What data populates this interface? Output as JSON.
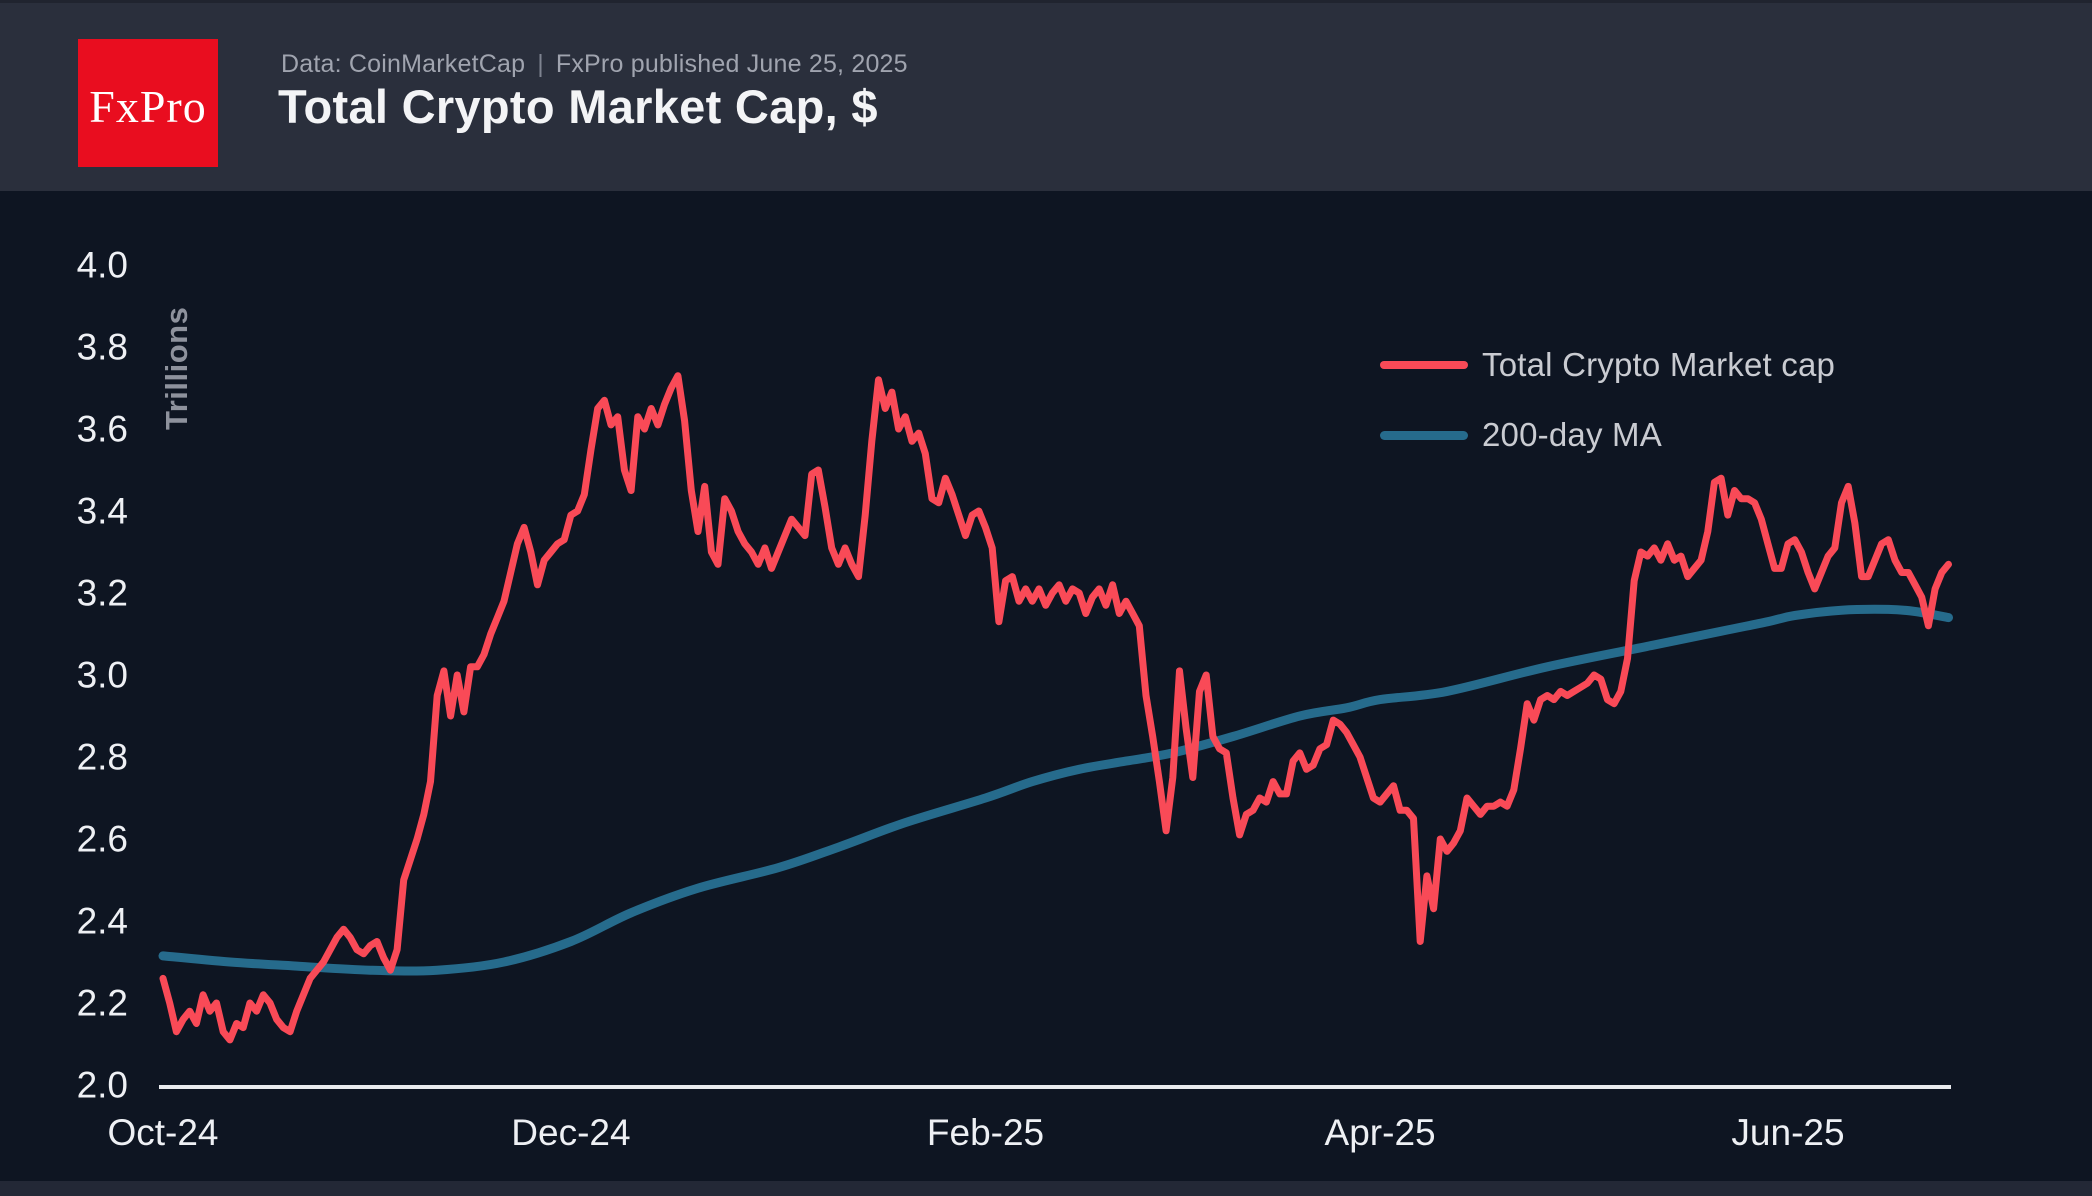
{
  "header": {
    "logo_text": "FxPro",
    "source_text": "Data: CoinMarketCap",
    "separator": "|",
    "published_text": "FxPro published June 25, 2025",
    "title": "Total Crypto Market Cap, $"
  },
  "colors": {
    "header_bg": "#2a2f3c",
    "body_bg": "#0e1522",
    "logo_red": "#e90d1f",
    "series_red": "#f94a57",
    "series_teal": "#266b8c",
    "axis_line": "#e9ebef",
    "tick_label": "#eef0f4",
    "y_axis_title": "#8e929d",
    "legend_text": "#c9cbd1"
  },
  "chart_data": {
    "type": "line",
    "title": "Total Crypto Market Cap, $",
    "xlabel": "",
    "ylabel": "Trillions",
    "ylim": [
      2.0,
      4.0
    ],
    "y_ticks": [
      4.0,
      3.8,
      3.6,
      3.4,
      3.2,
      3.0,
      2.8,
      2.6,
      2.4,
      2.2,
      2.0
    ],
    "x_ticks": [
      "Oct-24",
      "Dec-24",
      "Feb-25",
      "Apr-25",
      "Jun-25"
    ],
    "x_tick_days": [
      0,
      61,
      123,
      182,
      243
    ],
    "start_date": "2024-10-01",
    "end_date": "2025-06-25",
    "interval_days": 1,
    "grid": false,
    "legend_position": "upper right",
    "series": [
      {
        "name": "Total Crypto Market cap",
        "color": "#f94a57",
        "stroke_width": 7,
        "values": [
          2.26,
          2.2,
          2.13,
          2.16,
          2.18,
          2.15,
          2.22,
          2.18,
          2.2,
          2.13,
          2.11,
          2.15,
          2.14,
          2.2,
          2.18,
          2.22,
          2.2,
          2.16,
          2.14,
          2.13,
          2.18,
          2.22,
          2.26,
          2.28,
          2.3,
          2.33,
          2.36,
          2.38,
          2.36,
          2.33,
          2.32,
          2.34,
          2.35,
          2.31,
          2.28,
          2.33,
          2.5,
          2.55,
          2.6,
          2.66,
          2.74,
          2.95,
          3.01,
          2.9,
          3.0,
          2.91,
          3.02,
          3.02,
          3.05,
          3.1,
          3.14,
          3.18,
          3.25,
          3.32,
          3.36,
          3.3,
          3.22,
          3.28,
          3.3,
          3.32,
          3.33,
          3.39,
          3.4,
          3.44,
          3.55,
          3.65,
          3.67,
          3.61,
          3.63,
          3.5,
          3.45,
          3.63,
          3.6,
          3.65,
          3.61,
          3.66,
          3.7,
          3.73,
          3.62,
          3.45,
          3.35,
          3.46,
          3.3,
          3.27,
          3.43,
          3.4,
          3.35,
          3.32,
          3.3,
          3.27,
          3.31,
          3.26,
          3.3,
          3.34,
          3.38,
          3.36,
          3.34,
          3.49,
          3.5,
          3.41,
          3.31,
          3.27,
          3.31,
          3.27,
          3.24,
          3.39,
          3.57,
          3.72,
          3.65,
          3.69,
          3.6,
          3.63,
          3.57,
          3.59,
          3.54,
          3.43,
          3.42,
          3.48,
          3.44,
          3.39,
          3.34,
          3.39,
          3.4,
          3.36,
          3.31,
          3.13,
          3.23,
          3.24,
          3.18,
          3.21,
          3.18,
          3.21,
          3.17,
          3.2,
          3.22,
          3.18,
          3.21,
          3.2,
          3.15,
          3.19,
          3.21,
          3.17,
          3.22,
          3.15,
          3.18,
          3.15,
          3.12,
          2.95,
          2.85,
          2.74,
          2.62,
          2.75,
          3.01,
          2.87,
          2.75,
          2.96,
          3.0,
          2.85,
          2.82,
          2.81,
          2.7,
          2.61,
          2.66,
          2.67,
          2.7,
          2.69,
          2.74,
          2.71,
          2.71,
          2.79,
          2.81,
          2.77,
          2.78,
          2.82,
          2.83,
          2.89,
          2.88,
          2.86,
          2.83,
          2.8,
          2.75,
          2.7,
          2.69,
          2.71,
          2.73,
          2.67,
          2.67,
          2.65,
          2.35,
          2.51,
          2.43,
          2.6,
          2.57,
          2.59,
          2.62,
          2.7,
          2.68,
          2.66,
          2.68,
          2.68,
          2.69,
          2.68,
          2.72,
          2.82,
          2.93,
          2.89,
          2.94,
          2.95,
          2.94,
          2.96,
          2.95,
          2.96,
          2.97,
          2.98,
          3.0,
          2.99,
          2.94,
          2.93,
          2.96,
          3.04,
          3.23,
          3.3,
          3.29,
          3.31,
          3.28,
          3.32,
          3.28,
          3.29,
          3.24,
          3.26,
          3.28,
          3.35,
          3.47,
          3.48,
          3.39,
          3.45,
          3.43,
          3.43,
          3.42,
          3.38,
          3.32,
          3.26,
          3.26,
          3.32,
          3.33,
          3.3,
          3.25,
          3.21,
          3.25,
          3.29,
          3.31,
          3.42,
          3.46,
          3.37,
          3.24,
          3.24,
          3.28,
          3.32,
          3.33,
          3.28,
          3.25,
          3.25,
          3.22,
          3.19,
          3.12,
          3.21,
          3.25,
          3.27
        ]
      },
      {
        "name": "200-day MA",
        "color": "#266b8c",
        "stroke_width": 9,
        "keypoints": [
          [
            0,
            2.315
          ],
          [
            10,
            2.3
          ],
          [
            20,
            2.29
          ],
          [
            31,
            2.28
          ],
          [
            41,
            2.28
          ],
          [
            51,
            2.3
          ],
          [
            61,
            2.35
          ],
          [
            70,
            2.42
          ],
          [
            80,
            2.48
          ],
          [
            92,
            2.53
          ],
          [
            101,
            2.58
          ],
          [
            111,
            2.64
          ],
          [
            123,
            2.7
          ],
          [
            130,
            2.74
          ],
          [
            137,
            2.77
          ],
          [
            144,
            2.79
          ],
          [
            151,
            2.81
          ],
          [
            160,
            2.85
          ],
          [
            170,
            2.9
          ],
          [
            177,
            2.92
          ],
          [
            182,
            2.94
          ],
          [
            192,
            2.96
          ],
          [
            207,
            3.02
          ],
          [
            222,
            3.07
          ],
          [
            234,
            3.11
          ],
          [
            240,
            3.13
          ],
          [
            244,
            3.145
          ],
          [
            251,
            3.158
          ],
          [
            258,
            3.16
          ],
          [
            262,
            3.155
          ],
          [
            267,
            3.14
          ]
        ]
      }
    ]
  }
}
